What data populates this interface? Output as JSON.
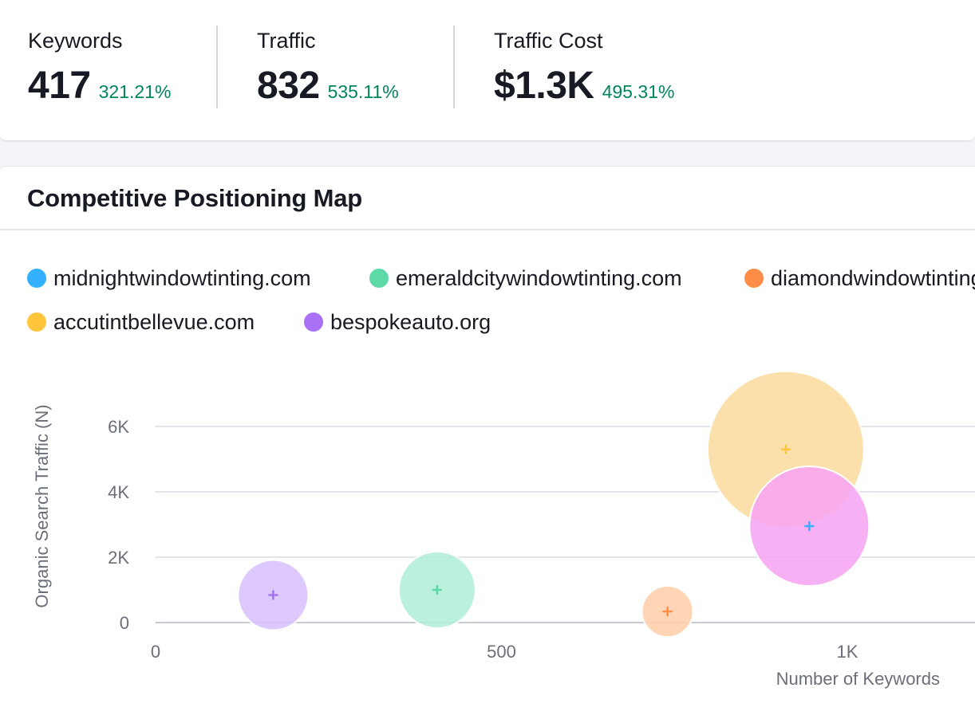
{
  "metrics": [
    {
      "label": "Keywords",
      "value": "417",
      "change": "321.21%"
    },
    {
      "label": "Traffic",
      "value": "832",
      "change": "535.11%"
    },
    {
      "label": "Traffic Cost",
      "value": "$1.3K",
      "change": "495.31%"
    }
  ],
  "map": {
    "title": "Competitive Positioning Map"
  },
  "chart_data": {
    "type": "scatter",
    "bubble": true,
    "xlabel": "Number of Keywords",
    "ylabel": "Organic Search Traffic (N)",
    "xlim": [
      0,
      1200
    ],
    "ylim": [
      0,
      6500
    ],
    "x_ticks": [
      0,
      500,
      1000
    ],
    "x_tick_labels": [
      "0",
      "500",
      "1K"
    ],
    "y_ticks": [
      0,
      2000,
      4000,
      6000
    ],
    "y_tick_labels": [
      "0",
      "2K",
      "4K",
      "6K"
    ],
    "grid": "horizontal",
    "legend_placement": "top",
    "series": [
      {
        "name": "midnightwindowtinting.com",
        "color": "#33b1ff",
        "x": 945,
        "y": 2950,
        "size": 75,
        "bubble_color": "#f7a5f2"
      },
      {
        "name": "emeraldcitywindowtinting.com",
        "color": "#5dd9a8",
        "x": 407,
        "y": 1000,
        "size": 48,
        "bubble_color": "#b2eed7"
      },
      {
        "name": "diamondwindowtinting.com",
        "color": "#ff8c47",
        "x": 740,
        "y": 340,
        "size": 32,
        "bubble_color": "#ffcfac"
      },
      {
        "name": "accutintbellevue.com",
        "color": "#ffc53b",
        "x": 911,
        "y": 5300,
        "size": 98,
        "bubble_color": "#fcdca0"
      },
      {
        "name": "bespokeauto.org",
        "color": "#a770f5",
        "x": 170,
        "y": 840,
        "size": 44,
        "bubble_color": "#d8c1fb"
      }
    ]
  }
}
